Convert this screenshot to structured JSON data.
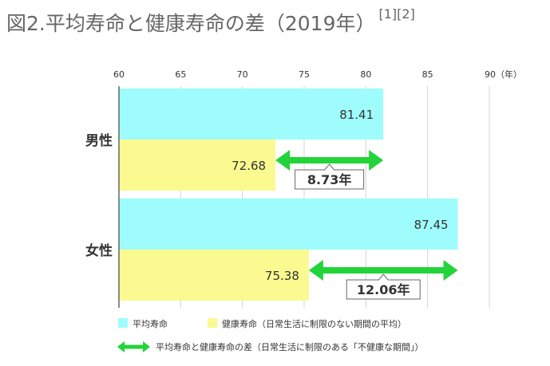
{
  "title": "図2.平均寿命と健康寿命の差（2019年）",
  "title_refs": "[1][2]",
  "colors": {
    "life": "#9ffcfc",
    "healthy": "#fafa91",
    "arrow": "#22d43a",
    "grid": "#d4d4d4",
    "axis": "#666666"
  },
  "chart_data": {
    "type": "bar",
    "orientation": "horizontal",
    "xlim": [
      60,
      90
    ],
    "ticks": [
      60,
      65,
      70,
      75,
      80,
      85,
      90
    ],
    "tick_labels": [
      "60",
      "65",
      "70",
      "75",
      "80",
      "85",
      "90（年）"
    ],
    "categories": [
      "男性",
      "女性"
    ],
    "series": [
      {
        "name": "平均寿命",
        "values": [
          81.41,
          87.45
        ],
        "color": "#9ffcfc"
      },
      {
        "name": "健康寿命（日常生活に制限のない期間の平均）",
        "values": [
          72.68,
          75.38
        ],
        "color": "#fafa91"
      }
    ],
    "differences": {
      "name": "平均寿命と健康寿命の差（日常生活に制限のある「不健康な期間」）",
      "values": [
        8.73,
        12.06
      ],
      "labels": [
        "8.73年",
        "12.06年"
      ]
    },
    "grid": true
  }
}
